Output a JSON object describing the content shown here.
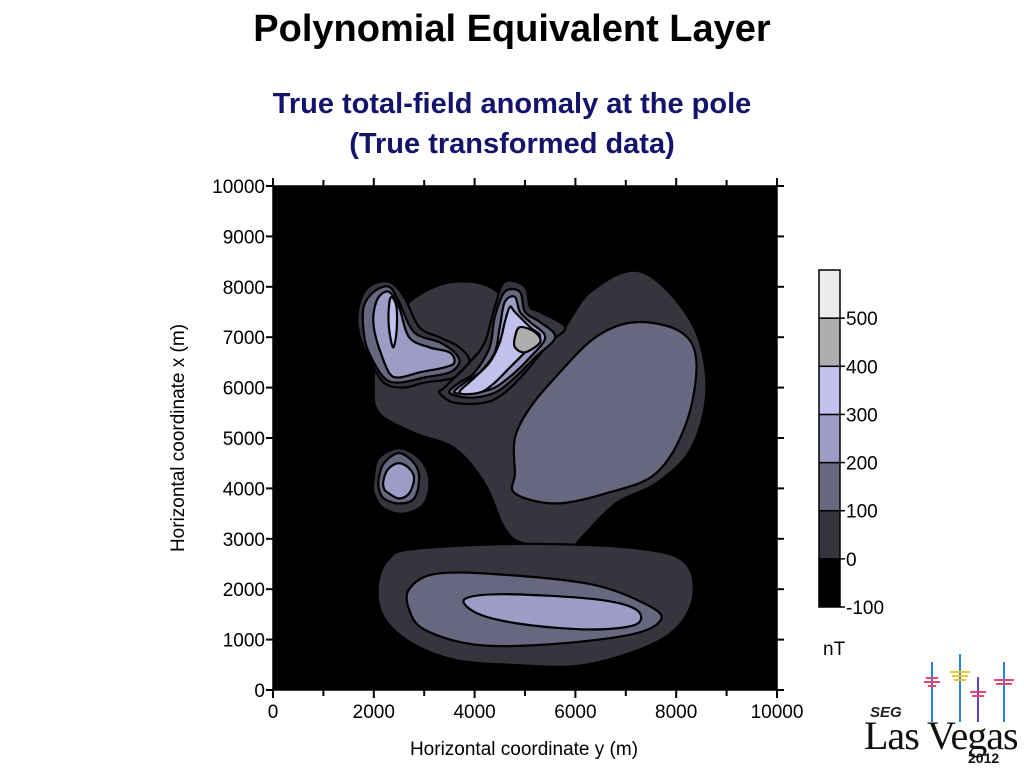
{
  "title": "Polynomial Equivalent Layer",
  "subtitle": {
    "line1": "True total-field anomaly at the pole",
    "line2": "(True transformed data)"
  },
  "colors": {
    "level_-100": "#000000",
    "level_0": "#36353e",
    "level_100": "#686780",
    "level_200": "#9d9cc6",
    "level_300": "#c2c1ee",
    "level_400": "#aeaeae",
    "level_500": "#ececec",
    "title_text": "#000000",
    "subtitle_text": "#13136b"
  },
  "logo": {
    "org": "SEG",
    "city": "Las Vegas",
    "year": "2012"
  },
  "chart_data": {
    "type": "heatmap",
    "subtype": "filled-contour",
    "xlabel": "Horizontal coordinate y (m)",
    "ylabel": "Horizontal coordinate x (m)",
    "xlim": [
      0,
      10000
    ],
    "ylim": [
      0,
      10000
    ],
    "xticks": [
      "0",
      "2000",
      "4000",
      "6000",
      "8000",
      "10000"
    ],
    "yticks": [
      "0",
      "1000",
      "2000",
      "3000",
      "4000",
      "5000",
      "6000",
      "7000",
      "8000",
      "9000",
      "10000"
    ],
    "grid": false,
    "colorbar": {
      "levels": [
        -100,
        0,
        100,
        200,
        300,
        400,
        500,
        600
      ],
      "tick_labels": [
        "-100",
        "0",
        "100",
        "200",
        "300",
        "400",
        "500"
      ],
      "colors": [
        "#000000",
        "#36353e",
        "#686780",
        "#9d9cc6",
        "#c2c1ee",
        "#aeaeae",
        "#ececec"
      ],
      "unit": "nT"
    },
    "contours": [
      {
        "name": "diagonal-body-0",
        "level": 0,
        "points": [
          [
            2000,
            6100
          ],
          [
            2100,
            6800
          ],
          [
            2500,
            7500
          ],
          [
            3000,
            7900
          ],
          [
            3600,
            8100
          ],
          [
            4300,
            8000
          ],
          [
            5000,
            7400
          ],
          [
            5600,
            7000
          ],
          [
            6300,
            7900
          ],
          [
            7300,
            8300
          ],
          [
            8300,
            7300
          ],
          [
            8600,
            6000
          ],
          [
            8300,
            4800
          ],
          [
            7600,
            4100
          ],
          [
            6800,
            3700
          ],
          [
            6100,
            3000
          ],
          [
            5900,
            2800
          ],
          [
            5000,
            2900
          ],
          [
            4600,
            3200
          ],
          [
            4200,
            4100
          ],
          [
            3600,
            4800
          ],
          [
            2800,
            5100
          ],
          [
            2100,
            5500
          ]
        ]
      },
      {
        "name": "diagonal-body-100",
        "level": 100,
        "points": [
          [
            4800,
            4300
          ],
          [
            4800,
            3900
          ],
          [
            5600,
            3700
          ],
          [
            6600,
            3900
          ],
          [
            7600,
            4300
          ],
          [
            8200,
            5300
          ],
          [
            8400,
            6500
          ],
          [
            8100,
            7100
          ],
          [
            7200,
            7300
          ],
          [
            6400,
            7000
          ],
          [
            5600,
            6200
          ],
          [
            5100,
            5600
          ],
          [
            4800,
            5000
          ]
        ]
      },
      {
        "name": "bottom-body-0",
        "level": 0,
        "points": [
          [
            2100,
            2200
          ],
          [
            2300,
            2600
          ],
          [
            2800,
            2800
          ],
          [
            5100,
            2900
          ],
          [
            7300,
            2800
          ],
          [
            8200,
            2500
          ],
          [
            8300,
            1700
          ],
          [
            7700,
            1000
          ],
          [
            6200,
            500
          ],
          [
            4700,
            500
          ],
          [
            3600,
            600
          ],
          [
            2800,
            900
          ],
          [
            2300,
            1300
          ],
          [
            2100,
            1700
          ]
        ]
      },
      {
        "name": "bottom-body-100",
        "level": 100,
        "points": [
          [
            2700,
            2000
          ],
          [
            3200,
            2300
          ],
          [
            4400,
            2300
          ],
          [
            6300,
            2100
          ],
          [
            7400,
            1700
          ],
          [
            7700,
            1400
          ],
          [
            7100,
            1100
          ],
          [
            5400,
            900
          ],
          [
            4000,
            900
          ],
          [
            3000,
            1200
          ],
          [
            2700,
            1600
          ]
        ]
      },
      {
        "name": "bottom-body-200",
        "level": 200,
        "points": [
          [
            3800,
            1800
          ],
          [
            4600,
            1900
          ],
          [
            6400,
            1800
          ],
          [
            7200,
            1600
          ],
          [
            7200,
            1300
          ],
          [
            6300,
            1200
          ],
          [
            5000,
            1300
          ],
          [
            4100,
            1500
          ]
        ]
      },
      {
        "name": "left-top-blob-0",
        "level": 0,
        "points": [
          [
            1700,
            7600
          ],
          [
            1900,
            8000
          ],
          [
            2300,
            8100
          ],
          [
            2600,
            7800
          ],
          [
            2900,
            7200
          ],
          [
            3300,
            7000
          ],
          [
            3700,
            6800
          ],
          [
            3900,
            6500
          ],
          [
            3600,
            6200
          ],
          [
            3000,
            6100
          ],
          [
            2600,
            6000
          ],
          [
            2200,
            6100
          ],
          [
            1900,
            6600
          ],
          [
            1700,
            7100
          ]
        ]
      },
      {
        "name": "left-top-blob-100",
        "level": 100,
        "points": [
          [
            1800,
            7600
          ],
          [
            2000,
            7900
          ],
          [
            2300,
            8000
          ],
          [
            2500,
            7700
          ],
          [
            2800,
            7100
          ],
          [
            3300,
            6900
          ],
          [
            3600,
            6700
          ],
          [
            3700,
            6500
          ],
          [
            3500,
            6300
          ],
          [
            3000,
            6200
          ],
          [
            2500,
            6100
          ],
          [
            2200,
            6200
          ],
          [
            1900,
            6700
          ],
          [
            1800,
            7100
          ]
        ]
      },
      {
        "name": "left-top-blob-200",
        "level": 200,
        "points": [
          [
            2000,
            7500
          ],
          [
            2100,
            7800
          ],
          [
            2300,
            7900
          ],
          [
            2500,
            7600
          ],
          [
            2700,
            7000
          ],
          [
            3100,
            6800
          ],
          [
            3500,
            6700
          ],
          [
            3600,
            6500
          ],
          [
            3400,
            6400
          ],
          [
            2900,
            6300
          ],
          [
            2500,
            6200
          ],
          [
            2300,
            6300
          ],
          [
            2100,
            6800
          ],
          [
            2000,
            7200
          ]
        ]
      },
      {
        "name": "left-top-blob-300",
        "level": 300,
        "points": [
          [
            2300,
            7200
          ],
          [
            2300,
            7600
          ],
          [
            2350,
            7800
          ],
          [
            2450,
            7600
          ],
          [
            2450,
            7100
          ],
          [
            2380,
            6800
          ]
        ]
      },
      {
        "name": "middle-blob-0",
        "level": 0,
        "points": [
          [
            3400,
            6000
          ],
          [
            3300,
            5900
          ],
          [
            3600,
            5700
          ],
          [
            4200,
            5700
          ],
          [
            4600,
            5900
          ],
          [
            5000,
            6300
          ],
          [
            5500,
            6900
          ],
          [
            5800,
            7200
          ],
          [
            5300,
            7500
          ],
          [
            5100,
            7600
          ],
          [
            5000,
            8000
          ],
          [
            4600,
            8100
          ],
          [
            4400,
            7600
          ],
          [
            4200,
            6900
          ],
          [
            3900,
            6500
          ]
        ]
      },
      {
        "name": "middle-blob-100",
        "level": 100,
        "points": [
          [
            3500,
            5900
          ],
          [
            3900,
            5800
          ],
          [
            4400,
            5900
          ],
          [
            4800,
            6200
          ],
          [
            5200,
            6600
          ],
          [
            5600,
            7000
          ],
          [
            5300,
            7300
          ],
          [
            5000,
            7500
          ],
          [
            4900,
            7900
          ],
          [
            4600,
            7900
          ],
          [
            4400,
            7400
          ],
          [
            4300,
            6800
          ],
          [
            4000,
            6300
          ],
          [
            3700,
            6100
          ]
        ]
      },
      {
        "name": "middle-blob-200",
        "level": 200,
        "points": [
          [
            3600,
            5900
          ],
          [
            4000,
            5900
          ],
          [
            4400,
            6000
          ],
          [
            4800,
            6300
          ],
          [
            5100,
            6600
          ],
          [
            5400,
            7000
          ],
          [
            5100,
            7300
          ],
          [
            4900,
            7500
          ],
          [
            4800,
            7800
          ],
          [
            4600,
            7700
          ],
          [
            4500,
            7200
          ],
          [
            4400,
            6700
          ],
          [
            4100,
            6300
          ],
          [
            3800,
            6100
          ]
        ]
      },
      {
        "name": "middle-blob-300",
        "level": 300,
        "points": [
          [
            3700,
            5900
          ],
          [
            4100,
            5900
          ],
          [
            4400,
            6100
          ],
          [
            4700,
            6400
          ],
          [
            5000,
            6700
          ],
          [
            5300,
            7000
          ],
          [
            5100,
            7200
          ],
          [
            4800,
            7500
          ],
          [
            4700,
            7600
          ],
          [
            4600,
            7300
          ],
          [
            4500,
            6900
          ],
          [
            4300,
            6500
          ],
          [
            4000,
            6200
          ]
        ]
      },
      {
        "name": "middle-blob-400",
        "level": 400,
        "points": [
          [
            4800,
            7000
          ],
          [
            4900,
            7200
          ],
          [
            5200,
            7100
          ],
          [
            5300,
            6900
          ],
          [
            5000,
            6700
          ],
          [
            4800,
            6800
          ]
        ]
      },
      {
        "name": "small-blob-0",
        "level": 0,
        "points": [
          [
            2000,
            4200
          ],
          [
            2100,
            4600
          ],
          [
            2500,
            4800
          ],
          [
            2900,
            4600
          ],
          [
            3100,
            4200
          ],
          [
            3000,
            3700
          ],
          [
            2600,
            3500
          ],
          [
            2200,
            3600
          ],
          [
            2000,
            3900
          ]
        ]
      },
      {
        "name": "small-blob-100",
        "level": 100,
        "points": [
          [
            2100,
            4200
          ],
          [
            2200,
            4500
          ],
          [
            2500,
            4700
          ],
          [
            2800,
            4500
          ],
          [
            2900,
            4200
          ],
          [
            2800,
            3800
          ],
          [
            2500,
            3700
          ],
          [
            2200,
            3800
          ],
          [
            2100,
            4000
          ]
        ]
      },
      {
        "name": "small-blob-200",
        "level": 200,
        "points": [
          [
            2200,
            4200
          ],
          [
            2300,
            4400
          ],
          [
            2500,
            4500
          ],
          [
            2700,
            4400
          ],
          [
            2800,
            4200
          ],
          [
            2700,
            3900
          ],
          [
            2500,
            3800
          ],
          [
            2300,
            3900
          ],
          [
            2200,
            4000
          ]
        ]
      }
    ]
  }
}
